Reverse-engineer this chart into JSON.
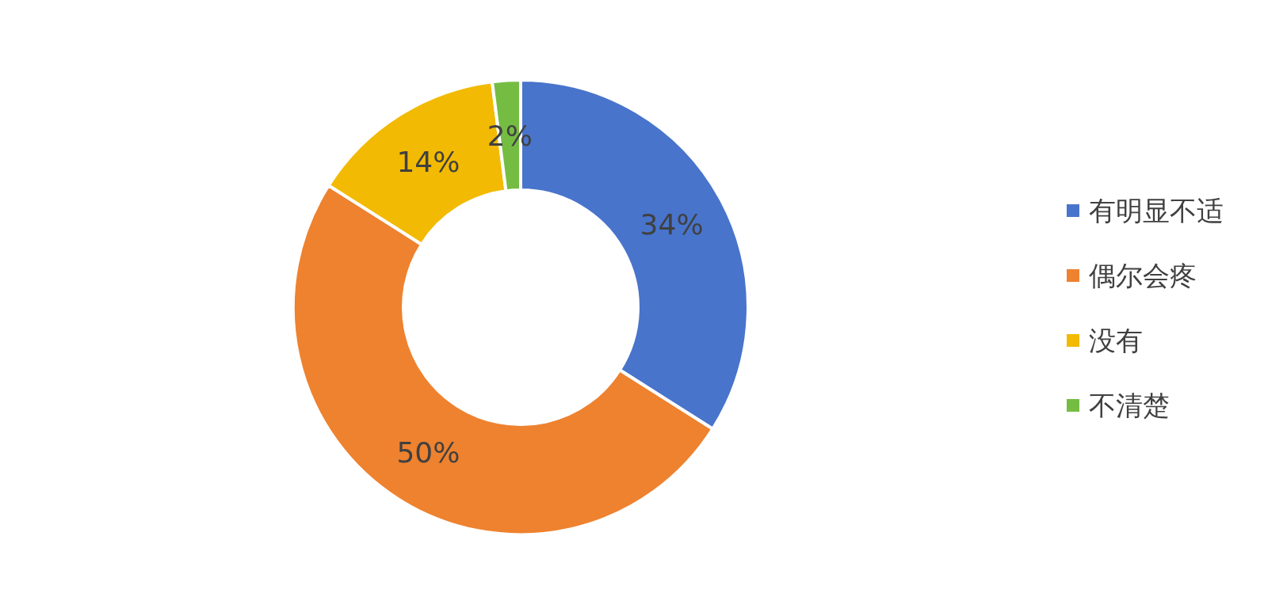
{
  "chart_data": {
    "type": "donut",
    "categories": [
      "有明显不适",
      "偶尔会疼",
      "没有",
      "不清楚"
    ],
    "values": [
      34,
      50,
      14,
      2
    ],
    "colors": [
      "#4874cb",
      "#ee822f",
      "#f2ba02",
      "#75bd42"
    ],
    "value_labels": [
      "34%",
      "50%",
      "14%",
      "2%"
    ],
    "legend": "right"
  }
}
